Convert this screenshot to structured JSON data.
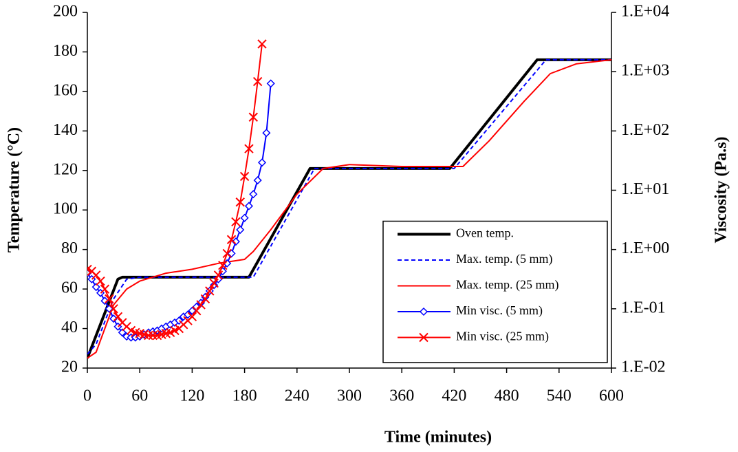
{
  "chart_data": {
    "type": "line",
    "x_label": "Time (minutes)",
    "y_label": "Temperature (°C)",
    "y2_label": "Viscosity (Pa.s)",
    "xlim": [
      0,
      600
    ],
    "xticks": [
      0,
      60,
      120,
      180,
      240,
      300,
      360,
      420,
      480,
      540,
      600
    ],
    "ylim": [
      20,
      200
    ],
    "yticks": [
      20,
      40,
      60,
      80,
      100,
      120,
      140,
      160,
      180,
      200
    ],
    "y2_log": true,
    "y2lim": [
      0.01,
      10000
    ],
    "y2ticks": [
      {
        "value": 0.01,
        "label": "1.E-02"
      },
      {
        "value": 0.1,
        "label": "1.E-01"
      },
      {
        "value": 1,
        "label": "1.E+00"
      },
      {
        "value": 10,
        "label": "1.E+01"
      },
      {
        "value": 100,
        "label": "1.E+02"
      },
      {
        "value": 1000,
        "label": "1.E+03"
      },
      {
        "value": 10000,
        "label": "1.E+04"
      }
    ],
    "legend": "lower right",
    "series": [
      {
        "name": "Oven temp.",
        "color": "#000000",
        "width": 4,
        "dashed": false,
        "x": [
          0,
          35,
          40,
          185,
          255,
          415,
          515,
          600
        ],
        "values": [
          25,
          65,
          66,
          66,
          121,
          121,
          176,
          176
        ]
      },
      {
        "name": "Max. temp. (5 mm)",
        "color": "#0000ff",
        "width": 2,
        "dashed": true,
        "x": [
          0,
          10,
          30,
          45,
          60,
          190,
          260,
          420,
          525,
          600
        ],
        "values": [
          27,
          32,
          55,
          65,
          66,
          66,
          121,
          121,
          176,
          176
        ]
      },
      {
        "name": "Max. temp. (25 mm)",
        "color": "#ff0000",
        "width": 2,
        "dashed": false,
        "x": [
          0,
          10,
          20,
          30,
          45,
          60,
          90,
          120,
          150,
          180,
          190,
          210,
          240,
          270,
          300,
          360,
          430,
          460,
          500,
          530,
          560,
          600
        ],
        "values": [
          25,
          28,
          40,
          52,
          60,
          64,
          68,
          70,
          73,
          75,
          79,
          90,
          108,
          121,
          123,
          122,
          122,
          135,
          155,
          169,
          174,
          176
        ]
      },
      {
        "name": "Min visc. (5 mm)",
        "color": "#0000ff",
        "width": 2,
        "dashed": false,
        "axis": "y2",
        "marker": "diamond",
        "x": [
          0,
          5,
          10,
          15,
          20,
          25,
          30,
          35,
          40,
          45,
          50,
          55,
          60,
          65,
          70,
          75,
          80,
          85,
          90,
          95,
          100,
          105,
          110,
          115,
          120,
          125,
          130,
          135,
          140,
          145,
          150,
          155,
          160,
          165,
          170,
          175,
          180,
          185,
          190,
          195,
          200,
          205,
          210
        ],
        "values": [
          0.398,
          0.316,
          0.233,
          0.185,
          0.136,
          0.1,
          0.0681,
          0.0501,
          0.0398,
          0.0341,
          0.0328,
          0.0328,
          0.0341,
          0.0369,
          0.0398,
          0.0414,
          0.043,
          0.0464,
          0.0501,
          0.0541,
          0.0585,
          0.0631,
          0.0736,
          0.0794,
          0.0926,
          0.108,
          0.126,
          0.158,
          0.2,
          0.251,
          0.316,
          0.43,
          0.585,
          0.858,
          1.36,
          2.15,
          3.41,
          5.41,
          8.58,
          14.7,
          29.3,
          92.6,
          631
        ]
      },
      {
        "name": "Min visc. (25 mm)",
        "color": "#ff0000",
        "width": 2,
        "dashed": false,
        "axis": "y2",
        "marker": "x",
        "x": [
          0,
          5,
          10,
          15,
          20,
          25,
          30,
          35,
          40,
          45,
          50,
          55,
          60,
          65,
          70,
          75,
          80,
          85,
          90,
          95,
          100,
          105,
          110,
          115,
          120,
          125,
          130,
          135,
          140,
          145,
          150,
          155,
          160,
          165,
          170,
          175,
          180,
          185,
          190,
          195,
          200
        ],
        "values": [
          0.464,
          0.43,
          0.369,
          0.293,
          0.215,
          0.147,
          0.1,
          0.0736,
          0.0585,
          0.0501,
          0.043,
          0.0398,
          0.0383,
          0.0369,
          0.0355,
          0.0355,
          0.0355,
          0.0369,
          0.0383,
          0.0398,
          0.043,
          0.0464,
          0.0541,
          0.0631,
          0.0736,
          0.0926,
          0.117,
          0.147,
          0.2,
          0.271,
          0.369,
          0.541,
          0.858,
          1.47,
          2.93,
          6.31,
          17.1,
          50.1,
          171,
          681,
          2930
        ]
      }
    ]
  }
}
